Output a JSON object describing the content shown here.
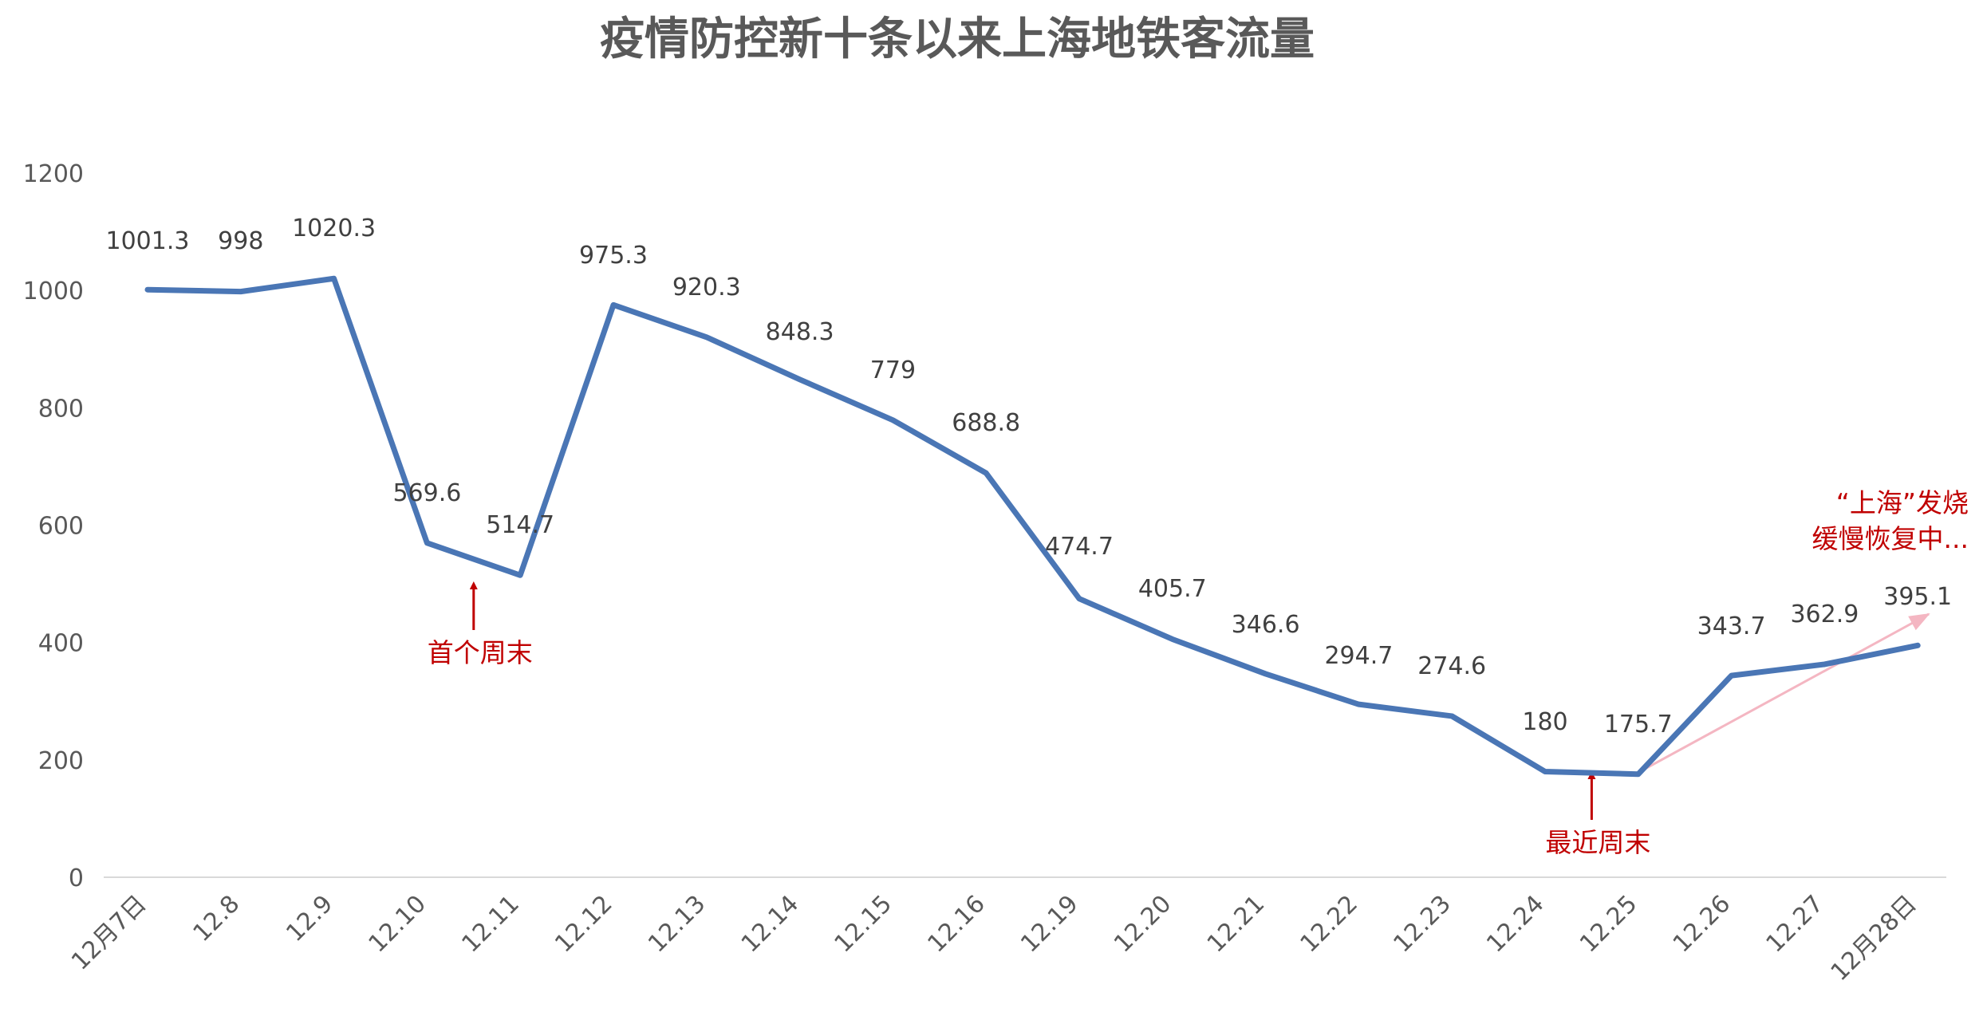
{
  "chart_data": {
    "type": "line",
    "title": "疫情防控新十条以来上海地铁客流量",
    "categories": [
      "12月7日",
      "12.8",
      "12.9",
      "12.10",
      "12.11",
      "12.12",
      "12.13",
      "12.14",
      "12.15",
      "12.16",
      "12.19",
      "12.20",
      "12.21",
      "12.22",
      "12.23",
      "12.24",
      "12.25",
      "12.26",
      "12.27",
      "12月28日"
    ],
    "series": [
      {
        "values": [
          1001.3,
          998,
          1020.3,
          569.6,
          514.7,
          975.3,
          920.3,
          848.3,
          779,
          688.8,
          474.7,
          405.7,
          346.6,
          294.7,
          274.6,
          180,
          175.7,
          343.7,
          362.9,
          395.1
        ],
        "labels": [
          "1001.3",
          "998",
          "1020.3",
          "569.6",
          "514.7",
          "975.3",
          "920.3",
          "848.3",
          "779",
          "688.8",
          "474.7",
          "405.7",
          "346.6",
          "294.7",
          "274.6",
          "180",
          "175.7",
          "343.7",
          "362.9",
          "395.1"
        ],
        "color": "#4a76b5"
      }
    ],
    "ylim": [
      0,
      1200
    ],
    "yticks": [
      "0",
      "200",
      "400",
      "600",
      "800",
      "1000",
      "1200"
    ],
    "xlabel": "",
    "ylabel": "",
    "grid": false,
    "legend": "none",
    "annotations": [
      {
        "text": "首个周末",
        "category_index": 4,
        "color": "#c00000"
      },
      {
        "text": "最近周末",
        "category_index": 16,
        "color": "#c00000"
      },
      {
        "lines": [
          "“上海”发烧",
          "缓慢恢复中..."
        ],
        "category_index": 19,
        "color": "#c00000",
        "arrow_color": "#f4b6c2"
      }
    ]
  }
}
